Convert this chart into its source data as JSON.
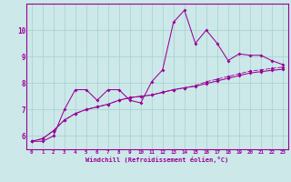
{
  "xlabel": "Windchill (Refroidissement éolien,°C)",
  "xlim": [
    -0.5,
    23.5
  ],
  "ylim": [
    5.5,
    11.0
  ],
  "yticks": [
    6,
    7,
    8,
    9,
    10
  ],
  "xticks": [
    0,
    1,
    2,
    3,
    4,
    5,
    6,
    7,
    8,
    9,
    10,
    11,
    12,
    13,
    14,
    15,
    16,
    17,
    18,
    19,
    20,
    21,
    22,
    23
  ],
  "bg_color": "#cce8e8",
  "grid_color": "#aad4d4",
  "line_color": "#990099",
  "line1": [
    5.8,
    5.8,
    6.0,
    7.0,
    7.75,
    7.75,
    7.35,
    7.75,
    7.75,
    7.35,
    7.25,
    8.05,
    8.5,
    10.3,
    10.75,
    9.5,
    10.0,
    9.5,
    8.85,
    9.1,
    9.05,
    9.05,
    8.85,
    8.7
  ],
  "line2": [
    5.8,
    5.9,
    6.2,
    6.6,
    6.85,
    7.0,
    7.1,
    7.2,
    7.35,
    7.45,
    7.5,
    7.55,
    7.65,
    7.75,
    7.82,
    7.88,
    7.98,
    8.08,
    8.18,
    8.28,
    8.38,
    8.43,
    8.48,
    8.52
  ],
  "line3": [
    5.8,
    5.9,
    6.2,
    6.6,
    6.85,
    7.0,
    7.1,
    7.2,
    7.35,
    7.45,
    7.5,
    7.55,
    7.65,
    7.75,
    7.82,
    7.9,
    8.05,
    8.15,
    8.25,
    8.35,
    8.45,
    8.5,
    8.55,
    8.6
  ]
}
